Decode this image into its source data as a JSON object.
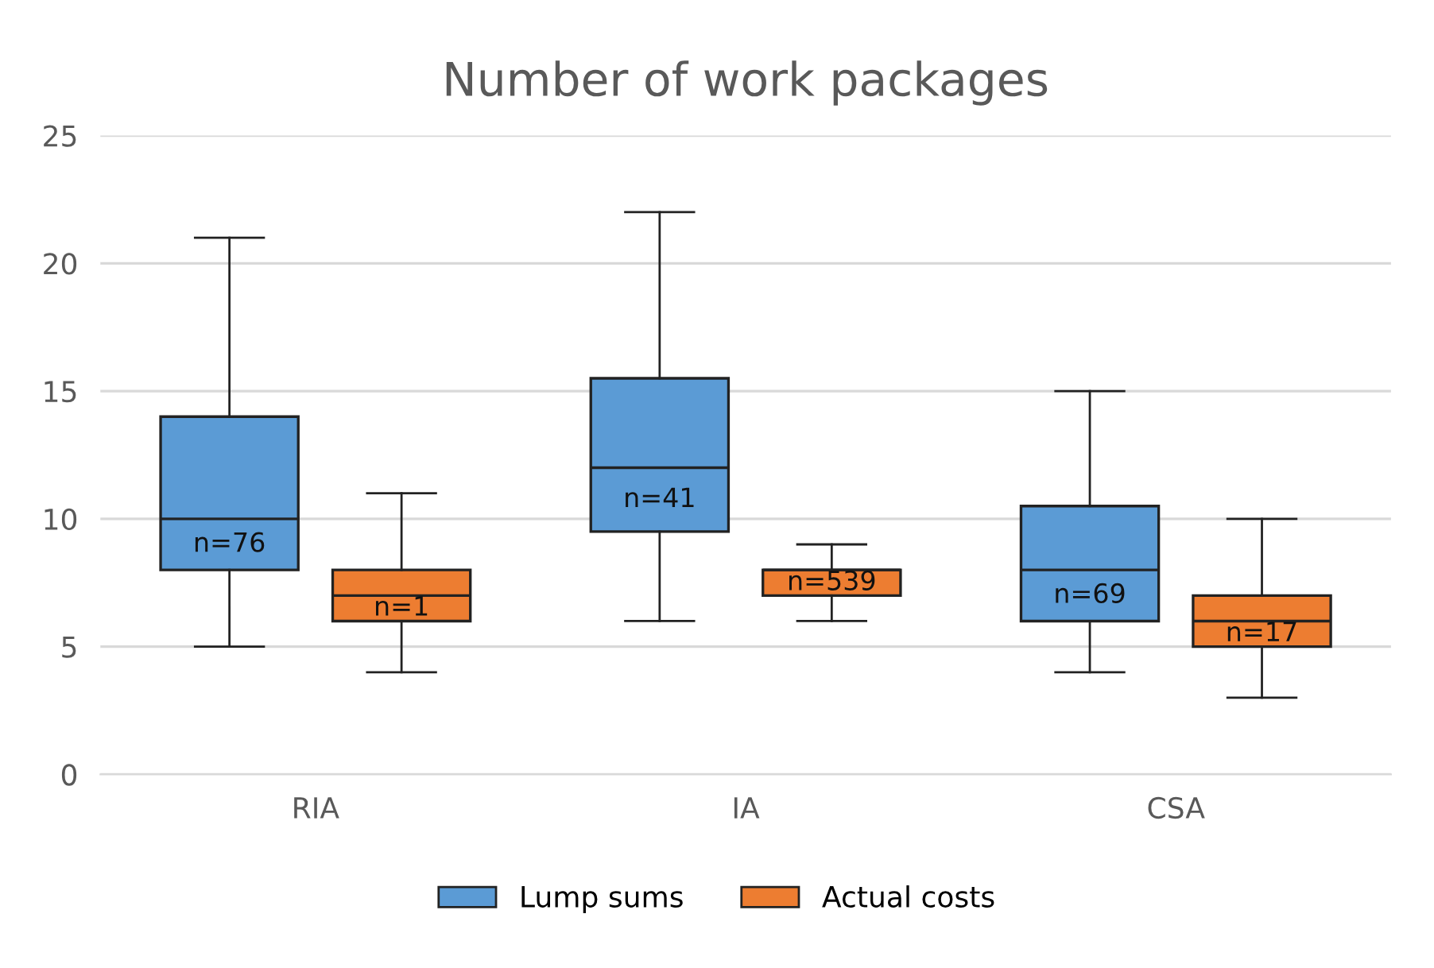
{
  "chart_data": {
    "type": "box",
    "title": "Number of work packages",
    "categories": [
      "RIA",
      "IA",
      "CSA"
    ],
    "series": [
      {
        "name": "Lump sums",
        "color": "#5b9bd5",
        "boxes": [
          {
            "low": 5,
            "q1": 8,
            "median": 10,
            "q3": 14,
            "high": 21
          },
          {
            "low": 6,
            "q1": 9.5,
            "median": 12,
            "q3": 15.5,
            "high": 22
          },
          {
            "low": 4,
            "q1": 6,
            "median": 8,
            "q3": 10.5,
            "high": 15
          }
        ]
      },
      {
        "name": "Actual costs",
        "color": "#ed7d31",
        "boxes": [
          {
            "low": 4,
            "q1": 6,
            "median": 7,
            "q3": 8,
            "high": 11
          },
          {
            "low": 6,
            "q1": 7,
            "median": 8,
            "q3": 8,
            "high": 9
          },
          {
            "low": 3,
            "q1": 5,
            "median": 6,
            "q3": 7,
            "high": 10
          }
        ]
      }
    ],
    "annotations": [
      "n=76",
      "n=1",
      "n=41",
      "n=539",
      "n=69",
      "n=17"
    ],
    "ylim": [
      0,
      25
    ],
    "yticks": [
      0,
      5,
      10,
      15,
      20,
      25
    ],
    "grid": "y",
    "legend": "bottom"
  }
}
